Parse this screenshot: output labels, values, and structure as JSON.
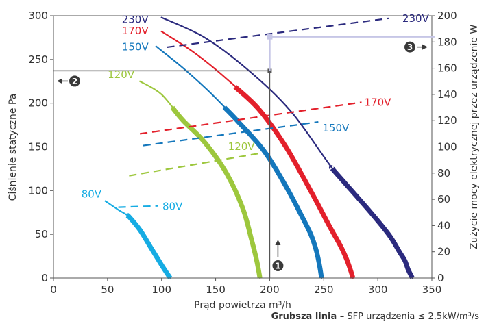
{
  "chart_data": {
    "type": "line",
    "xlabel": "Prąd powietrza m³/h",
    "ylabel_left": "Ciśnienie statyczne Pa",
    "ylabel_right": "Zużycie mocy elektrycznej przez urządzenie W",
    "xlim": [
      0,
      350
    ],
    "ylim_left": [
      0,
      300
    ],
    "ylim_right": [
      0,
      200
    ],
    "x_ticks": [
      "0",
      "50",
      "100",
      "150",
      "200",
      "250",
      "300",
      "350"
    ],
    "y_left_ticks": [
      "0",
      "50",
      "100",
      "150",
      "200",
      "250",
      "300"
    ],
    "y_right_ticks": [
      "0",
      "20",
      "40",
      "60",
      "80",
      "100",
      "120",
      "140",
      "160",
      "180",
      "200"
    ],
    "grid": false,
    "pressure_series": [
      {
        "label": "230V",
        "color": "#2b2a7e",
        "x": [
          100,
          140,
          180,
          220,
          260,
          290,
          310,
          320,
          325,
          328,
          332
        ],
        "y": [
          298,
          275,
          238,
          190,
          122,
          80,
          50,
          30,
          20,
          10,
          0
        ],
        "thick_from": 258
      },
      {
        "label": "170V",
        "color": "#e3202b",
        "x": [
          100,
          130,
          160,
          190,
          215,
          240,
          255,
          265,
          270,
          274,
          277
        ],
        "y": [
          282,
          258,
          228,
          193,
          150,
          95,
          60,
          38,
          25,
          12,
          0
        ],
        "thick_from": 168
      },
      {
        "label": "150V",
        "color": "#1477bc",
        "x": [
          95,
          120,
          145,
          170,
          195,
          215,
          230,
          238,
          243,
          246,
          248
        ],
        "y": [
          265,
          240,
          212,
          180,
          145,
          105,
          70,
          50,
          32,
          15,
          0
        ],
        "thick_from": 158
      },
      {
        "label": "120V",
        "color": "#9dc73d",
        "x": [
          80,
          100,
          120,
          140,
          160,
          175,
          183,
          188,
          191
        ],
        "y": [
          225,
          210,
          180,
          155,
          120,
          80,
          45,
          20,
          0
        ],
        "thick_from": 110
      },
      {
        "label": "80V",
        "color": "#16ace3",
        "x": [
          48,
          60,
          70,
          80,
          90,
          100,
          108
        ],
        "y": [
          88,
          78,
          70,
          55,
          35,
          15,
          0
        ],
        "thick_from": 68
      }
    ],
    "power_series": [
      {
        "label": "230V",
        "color": "#2b2a7e",
        "x": [
          105,
          310
        ],
        "y": [
          176,
          198
        ]
      },
      {
        "label": "170V",
        "color": "#e3202b",
        "x": [
          80,
          285
        ],
        "y": [
          110,
          134
        ]
      },
      {
        "label": "150V",
        "color": "#1477bc",
        "x": [
          83,
          245
        ],
        "y": [
          101,
          119
        ]
      },
      {
        "label": "120V",
        "color": "#9dc73d",
        "x": [
          70,
          190
        ],
        "y": [
          78,
          95
        ]
      },
      {
        "label": "80V",
        "color": "#16ace3",
        "x": [
          60,
          97
        ],
        "y": [
          54,
          55
        ]
      }
    ],
    "annotations": [
      {
        "marker": "1",
        "text": "",
        "x": 200,
        "y_left": 237,
        "y_right": 184
      },
      {
        "marker": "2",
        "text": "",
        "value_left": 237
      },
      {
        "marker": "3",
        "text": "",
        "value_right": 184
      }
    ]
  },
  "footnote": {
    "bold": "Grubsza linia –",
    "rest": "SFP urządzenia ≤ 2,5kW/m³/s"
  }
}
